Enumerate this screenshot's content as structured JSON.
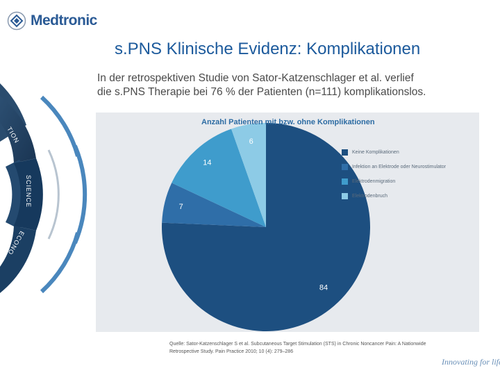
{
  "header": {
    "brand": "Medtronic",
    "tagline": "Innovating for life."
  },
  "slide": {
    "title": "s.PNS Klinische Evidenz: Komplikationen",
    "subtitle_line1": "In der retrospektiven Studie von Sator-Katzenschlager et al. verlief",
    "subtitle_line2": "die s.PNS Therapie bei 76 % der Patienten (n=111) komplikationslos."
  },
  "wheel": {
    "segments": [
      "TION",
      "SCIENCE",
      "ECONO"
    ]
  },
  "source": {
    "line1": "Quelle: Sator-Katzenschlager S et al. Subcutaneous Target Stimulation (STS) in Chronic Noncancer Pain: A Nationwide",
    "line2": "Retrospective Study. Pain Practice 2010; 10 (4): 279–286"
  },
  "chart_data": {
    "type": "pie",
    "title": "Anzahl Patienten mit bzw. ohne Komplikationen",
    "slices": [
      {
        "label": "Keine Komplikationen",
        "value": 84,
        "color": "#1d4f80"
      },
      {
        "label": "Infektion an Elektrode oder Neurostimulator",
        "value": 7,
        "color": "#2f6ea8"
      },
      {
        "label": "Elektrodenmigration",
        "value": 14,
        "color": "#3f9ccc"
      },
      {
        "label": "Elektrodenbruch",
        "value": 6,
        "color": "#8dcbe6"
      }
    ],
    "legend_position": "right"
  }
}
